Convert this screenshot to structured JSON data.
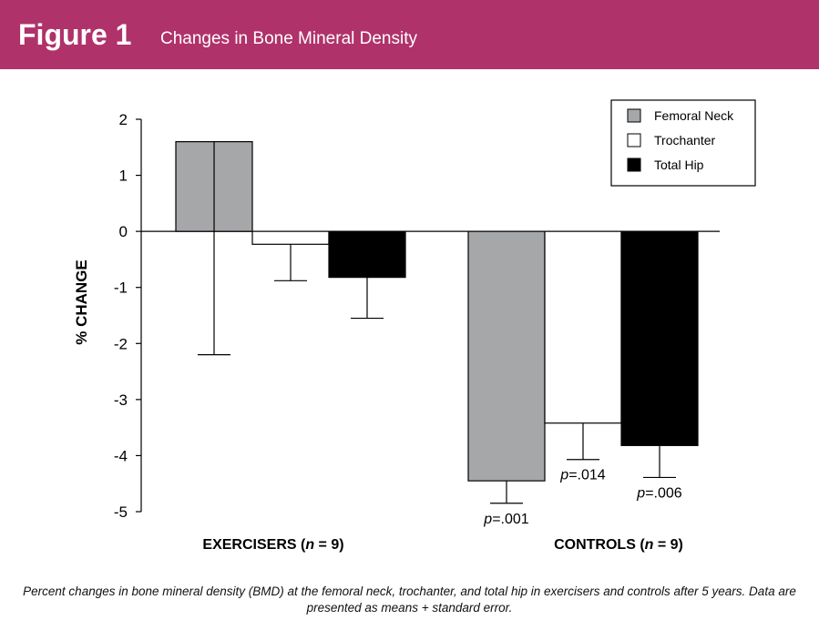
{
  "header": {
    "figure_label": "Figure 1",
    "title": "Changes in Bone Mineral Density",
    "background": "#b0326a"
  },
  "chart_data": {
    "type": "bar",
    "ylabel": "% CHANGE",
    "ylim": [
      -5,
      2
    ],
    "yticks": [
      2,
      1,
      0,
      -1,
      -2,
      -3,
      -4,
      -5
    ],
    "ytick_labels": [
      "2",
      "1",
      "0",
      "-1",
      "-2",
      "-3",
      "-4",
      "-5"
    ],
    "categories": [
      {
        "label_main": "EXERCISERS (",
        "label_n": "n",
        "label_tail": " = 9)"
      },
      {
        "label_main": "CONTROLS (",
        "label_n": "n",
        "label_tail": " = 9)"
      }
    ],
    "series": [
      {
        "name": "Femoral Neck",
        "color": "#a6a7a9",
        "values": [
          1.6,
          -4.45
        ],
        "error": [
          3.8,
          0.4
        ]
      },
      {
        "name": "Trochanter",
        "color": "#ffffff",
        "values": [
          -0.23,
          -3.42
        ],
        "error": [
          0.65,
          0.65
        ]
      },
      {
        "name": "Total Hip",
        "color": "#000000",
        "values": [
          -0.82,
          -3.82
        ],
        "error": [
          0.73,
          0.57
        ]
      }
    ],
    "annotations": [
      {
        "group": 1,
        "series": 0,
        "prefix": "p",
        "value": "=.001"
      },
      {
        "group": 1,
        "series": 1,
        "prefix": "p",
        "value": "=.014"
      },
      {
        "group": 1,
        "series": 2,
        "prefix": "p",
        "value": "=.006"
      }
    ],
    "legend_position": "top-right"
  },
  "caption": "Percent changes in bone mineral density (BMD) at the femoral neck, trochanter, and total hip in exercisers and controls after 5 years. Data are presented as means + standard error."
}
